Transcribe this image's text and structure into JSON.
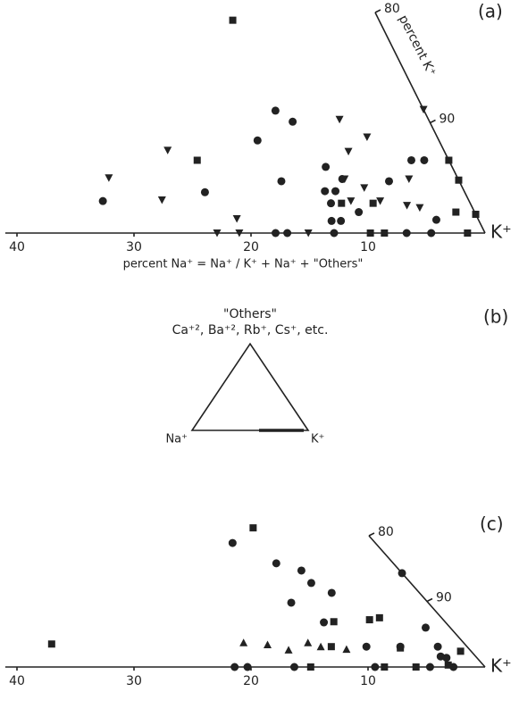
{
  "chart_data": [
    {
      "type": "scatter",
      "title": "(a)",
      "x_label": "percent Na⁺ = Na⁺ / K⁺ + Na⁺ + \"Others\"",
      "slant_label": "percent K⁺",
      "corner_label": "K⁺",
      "xlim": [
        41,
        0
      ],
      "xticks": [
        40,
        30,
        20,
        10
      ],
      "klim": [
        100,
        80
      ],
      "kticks": [
        80,
        90
      ],
      "series": [
        {
          "marker": "square",
          "color": "#222",
          "x": [
            12.5,
            21.5,
            8.3,
            11.0,
            1.6,
            0,
            0,
            0,
            9.8,
            8.6,
            1.5
          ],
          "y": [
            19.3,
            6.6,
            2.7,
            2.7,
            1.9,
            6.6,
            4.8,
            1.7,
            0,
            0,
            0
          ]
        },
        {
          "marker": "circle",
          "color": "#222",
          "x": [
            31.3,
            12.7,
            11.7,
            15.5,
            22.2,
            15.2,
            10.8,
            11.9,
            11.0,
            9.9,
            11.9,
            12.6,
            11.8,
            9.9,
            6.0,
            3.2,
            2.1,
            3.6,
            17.9,
            16.9,
            12.9,
            6.7,
            4.6
          ],
          "y": [
            2.9,
            11.1,
            10.1,
            8.4,
            3.7,
            4.7,
            6.0,
            3.8,
            3.8,
            4.9,
            2.7,
            1.1,
            1.1,
            1.9,
            4.7,
            6.6,
            6.6,
            1.2,
            0,
            0,
            0,
            0,
            0
          ]
        },
        {
          "marker": "triangle-down",
          "color": "#222",
          "x": [
            23.6,
            29.8,
            26.2,
            20.6,
            22.9,
            21.0,
            15.1,
            7.6,
            6.0,
            8.2,
            9.7,
            8.4,
            7.6,
            10.1,
            5.5,
            4.2,
            4.5,
            0
          ],
          "y": [
            7.5,
            5.0,
            3.0,
            1.3,
            0,
            0,
            0,
            10.3,
            8.7,
            7.4,
            4.9,
            4.1,
            2.9,
            2.9,
            2.5,
            4.9,
            2.3,
            11.2
          ]
        }
      ]
    },
    {
      "type": "scatter",
      "title": "(c)",
      "corner_label": "K⁺",
      "xlim": [
        41,
        0
      ],
      "xticks": [
        40,
        30,
        20,
        10
      ],
      "klim": [
        100,
        80
      ],
      "kticks": [
        80,
        90
      ],
      "series": [
        {
          "marker": "circle",
          "color": "#222",
          "x": [
            12.2,
            10.0,
            8.4,
            8.5,
            7.5,
            11.7,
            10.4,
            0,
            2.1,
            2.5,
            8.6,
            5.7,
            3.0,
            2.6,
            21.4,
            20.3,
            16.3,
            9.4,
            4.7,
            2.7
          ],
          "y": [
            18.9,
            15.8,
            14.7,
            12.8,
            11.3,
            9.8,
            6.8,
            14.3,
            6.0,
            3.1,
            3.1,
            3.1,
            1.6,
            1.4,
            0,
            0,
            0,
            0,
            0,
            0
          ]
        },
        {
          "marker": "square",
          "color": "#222",
          "x": [
            35.3,
            9.3,
            9.5,
            6.3,
            5.3,
            11.6,
            5.8,
            0.9,
            3.0,
            8.6,
            5.9,
            14.9
          ],
          "y": [
            3.5,
            21.2,
            6.9,
            7.2,
            7.5,
            3.1,
            2.9,
            2.4,
            0.3,
            0,
            0,
            0
          ]
        },
        {
          "marker": "triangle-up",
          "color": "#222",
          "x": [
            18.8,
            16.9,
            15.5,
            13.3,
            12.5,
            10.5
          ],
          "y": [
            3.7,
            3.4,
            2.6,
            3.7,
            3.1,
            2.7
          ]
        }
      ]
    }
  ],
  "diagram": {
    "title": "(b)",
    "top_label": "\"Others\"",
    "top_sublabel": "Ca⁺², Ba⁺², Rb⁺, Cs⁺, etc.",
    "left_label": "Na⁺",
    "right_label": "K⁺"
  }
}
